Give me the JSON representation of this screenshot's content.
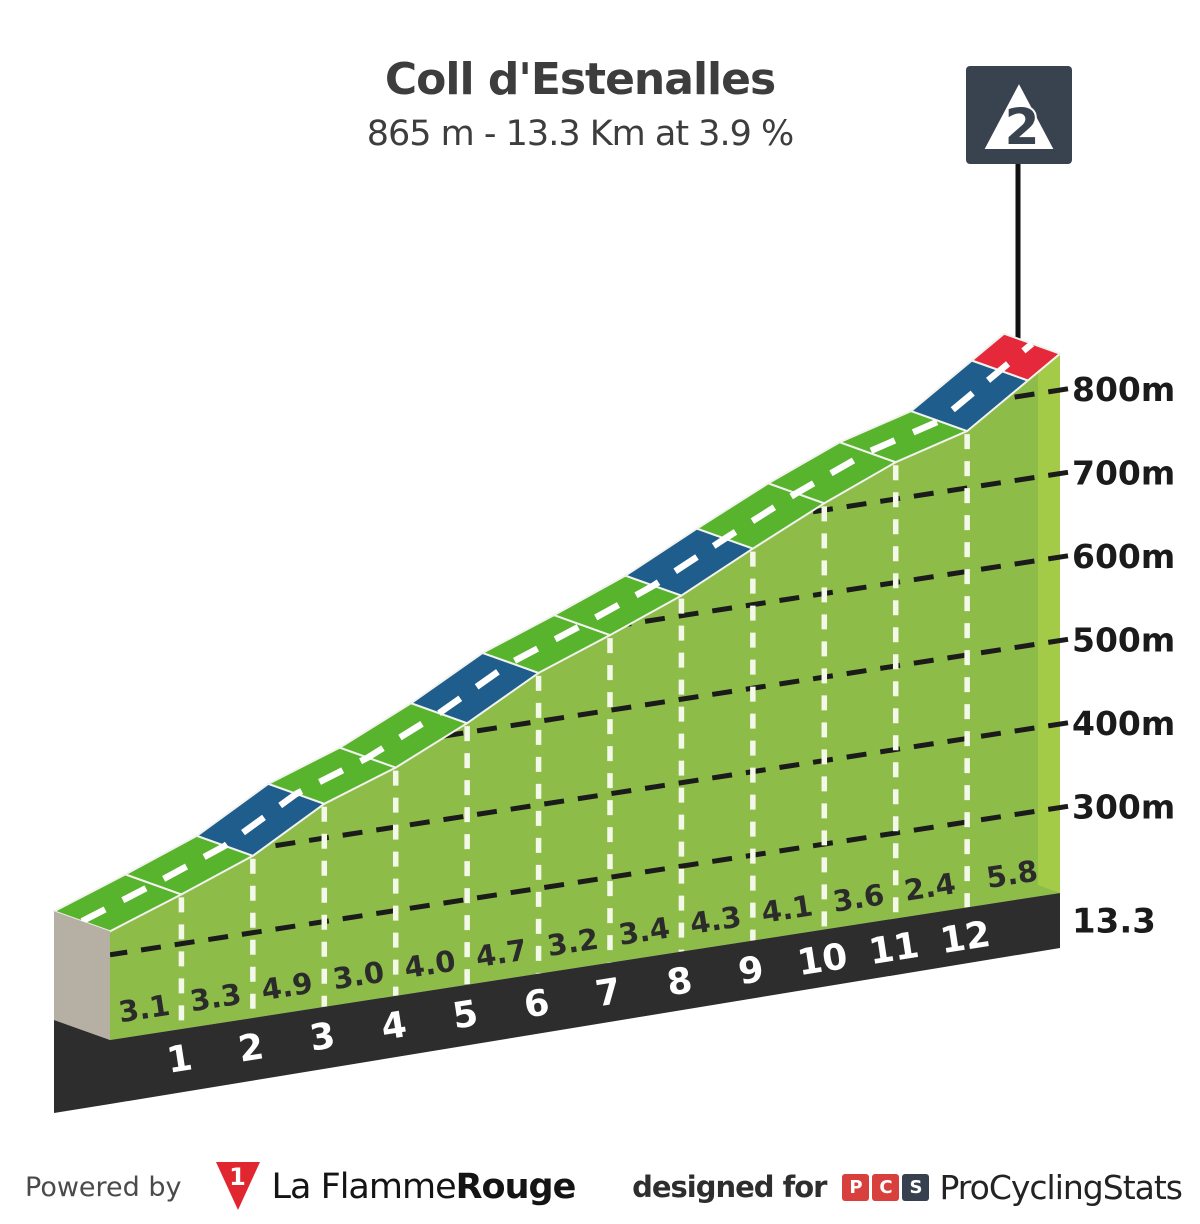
{
  "header": {
    "title": "Coll d'Estenalles",
    "subtitle": "865 m - 13.3 Km at 3.9 %"
  },
  "chart_data": {
    "type": "area",
    "title": "Coll d'Estenalles",
    "subtitle": "865 m - 13.3 Km at 3.9 %",
    "summit_elevation_m": 865,
    "length_km": 13.3,
    "avg_gradient_pct": 3.9,
    "badge": {
      "text": "2"
    },
    "end_distance_label": "13.3",
    "km_tick_labels": [
      "1",
      "2",
      "3",
      "4",
      "5",
      "6",
      "7",
      "8",
      "9",
      "10",
      "11",
      "12"
    ],
    "elevation_ticks": [
      {
        "label": "800m",
        "elevation_m": 800
      },
      {
        "label": "700m",
        "elevation_m": 700
      },
      {
        "label": "600m",
        "elevation_m": 600
      },
      {
        "label": "500m",
        "elevation_m": 500
      },
      {
        "label": "400m",
        "elevation_m": 400
      },
      {
        "label": "300m",
        "elevation_m": 300
      }
    ],
    "gradient_segments": [
      {
        "from_km": 0,
        "to_km": 1,
        "gradient_pct": 3.1
      },
      {
        "from_km": 1,
        "to_km": 2,
        "gradient_pct": 3.3
      },
      {
        "from_km": 2,
        "to_km": 3,
        "gradient_pct": 4.9
      },
      {
        "from_km": 3,
        "to_km": 4,
        "gradient_pct": 3.0
      },
      {
        "from_km": 4,
        "to_km": 5,
        "gradient_pct": 4.0
      },
      {
        "from_km": 5,
        "to_km": 6,
        "gradient_pct": 4.7
      },
      {
        "from_km": 6,
        "to_km": 7,
        "gradient_pct": 3.2
      },
      {
        "from_km": 7,
        "to_km": 8,
        "gradient_pct": 3.4
      },
      {
        "from_km": 8,
        "to_km": 9,
        "gradient_pct": 4.3
      },
      {
        "from_km": 9,
        "to_km": 10,
        "gradient_pct": 4.1
      },
      {
        "from_km": 10,
        "to_km": 11,
        "gradient_pct": 3.6
      },
      {
        "from_km": 11,
        "to_km": 12,
        "gradient_pct": 2.4
      },
      {
        "from_km": 12,
        "to_km": 13.3,
        "gradient_pct": 5.8
      }
    ],
    "gradient_label_format": [
      "3.1",
      "3.3",
      "4.9",
      "3.0",
      "4.0",
      "4.7",
      "3.2",
      "3.4",
      "4.3",
      "4.1",
      "3.6",
      "2.4",
      "5.8"
    ],
    "road_pieces": [
      {
        "from_km": 0,
        "to_km": 1,
        "color": "green"
      },
      {
        "from_km": 1,
        "to_km": 2,
        "color": "green"
      },
      {
        "from_km": 2,
        "to_km": 3,
        "color": "blue"
      },
      {
        "from_km": 3,
        "to_km": 4,
        "color": "green"
      },
      {
        "from_km": 4,
        "to_km": 5,
        "color": "green"
      },
      {
        "from_km": 5,
        "to_km": 6,
        "color": "blue"
      },
      {
        "from_km": 6,
        "to_km": 7,
        "color": "green"
      },
      {
        "from_km": 7,
        "to_km": 8,
        "color": "green"
      },
      {
        "from_km": 8,
        "to_km": 9,
        "color": "blue"
      },
      {
        "from_km": 9,
        "to_km": 10,
        "color": "green"
      },
      {
        "from_km": 10,
        "to_km": 11,
        "color": "green"
      },
      {
        "from_km": 11,
        "to_km": 12,
        "color": "green"
      },
      {
        "from_km": 12,
        "to_km": 12.85,
        "color": "blue"
      },
      {
        "from_km": 12.85,
        "to_km": 13.3,
        "color": "red"
      }
    ],
    "colors": {
      "face": "#8dbc49",
      "road_green": "#57b42c",
      "road_blue": "#1e5d8c",
      "road_red": "#e5293b",
      "side_strip": "#a4cb48",
      "band": "#2d2d2d",
      "cap_gray": "#b6afa4",
      "grid_line": "#1b1b1b",
      "km_line": "#f3f8e8",
      "center_line": "#ffffff",
      "label_dark": "#1b1b1b",
      "gradient_label": "#2b2b2b",
      "km_number": "#ffffff",
      "badge_bg": "#39434f",
      "badge_triangle": "#ffffff"
    }
  },
  "footer": {
    "powered_by": "Powered by",
    "lfr_mark": "1",
    "brand_regular": "La Flamme",
    "brand_bold": "Rouge",
    "designed_for": "designed for",
    "pcs_letters": [
      "P",
      "C",
      "S"
    ],
    "pcs_name": "ProCyclingStats"
  }
}
